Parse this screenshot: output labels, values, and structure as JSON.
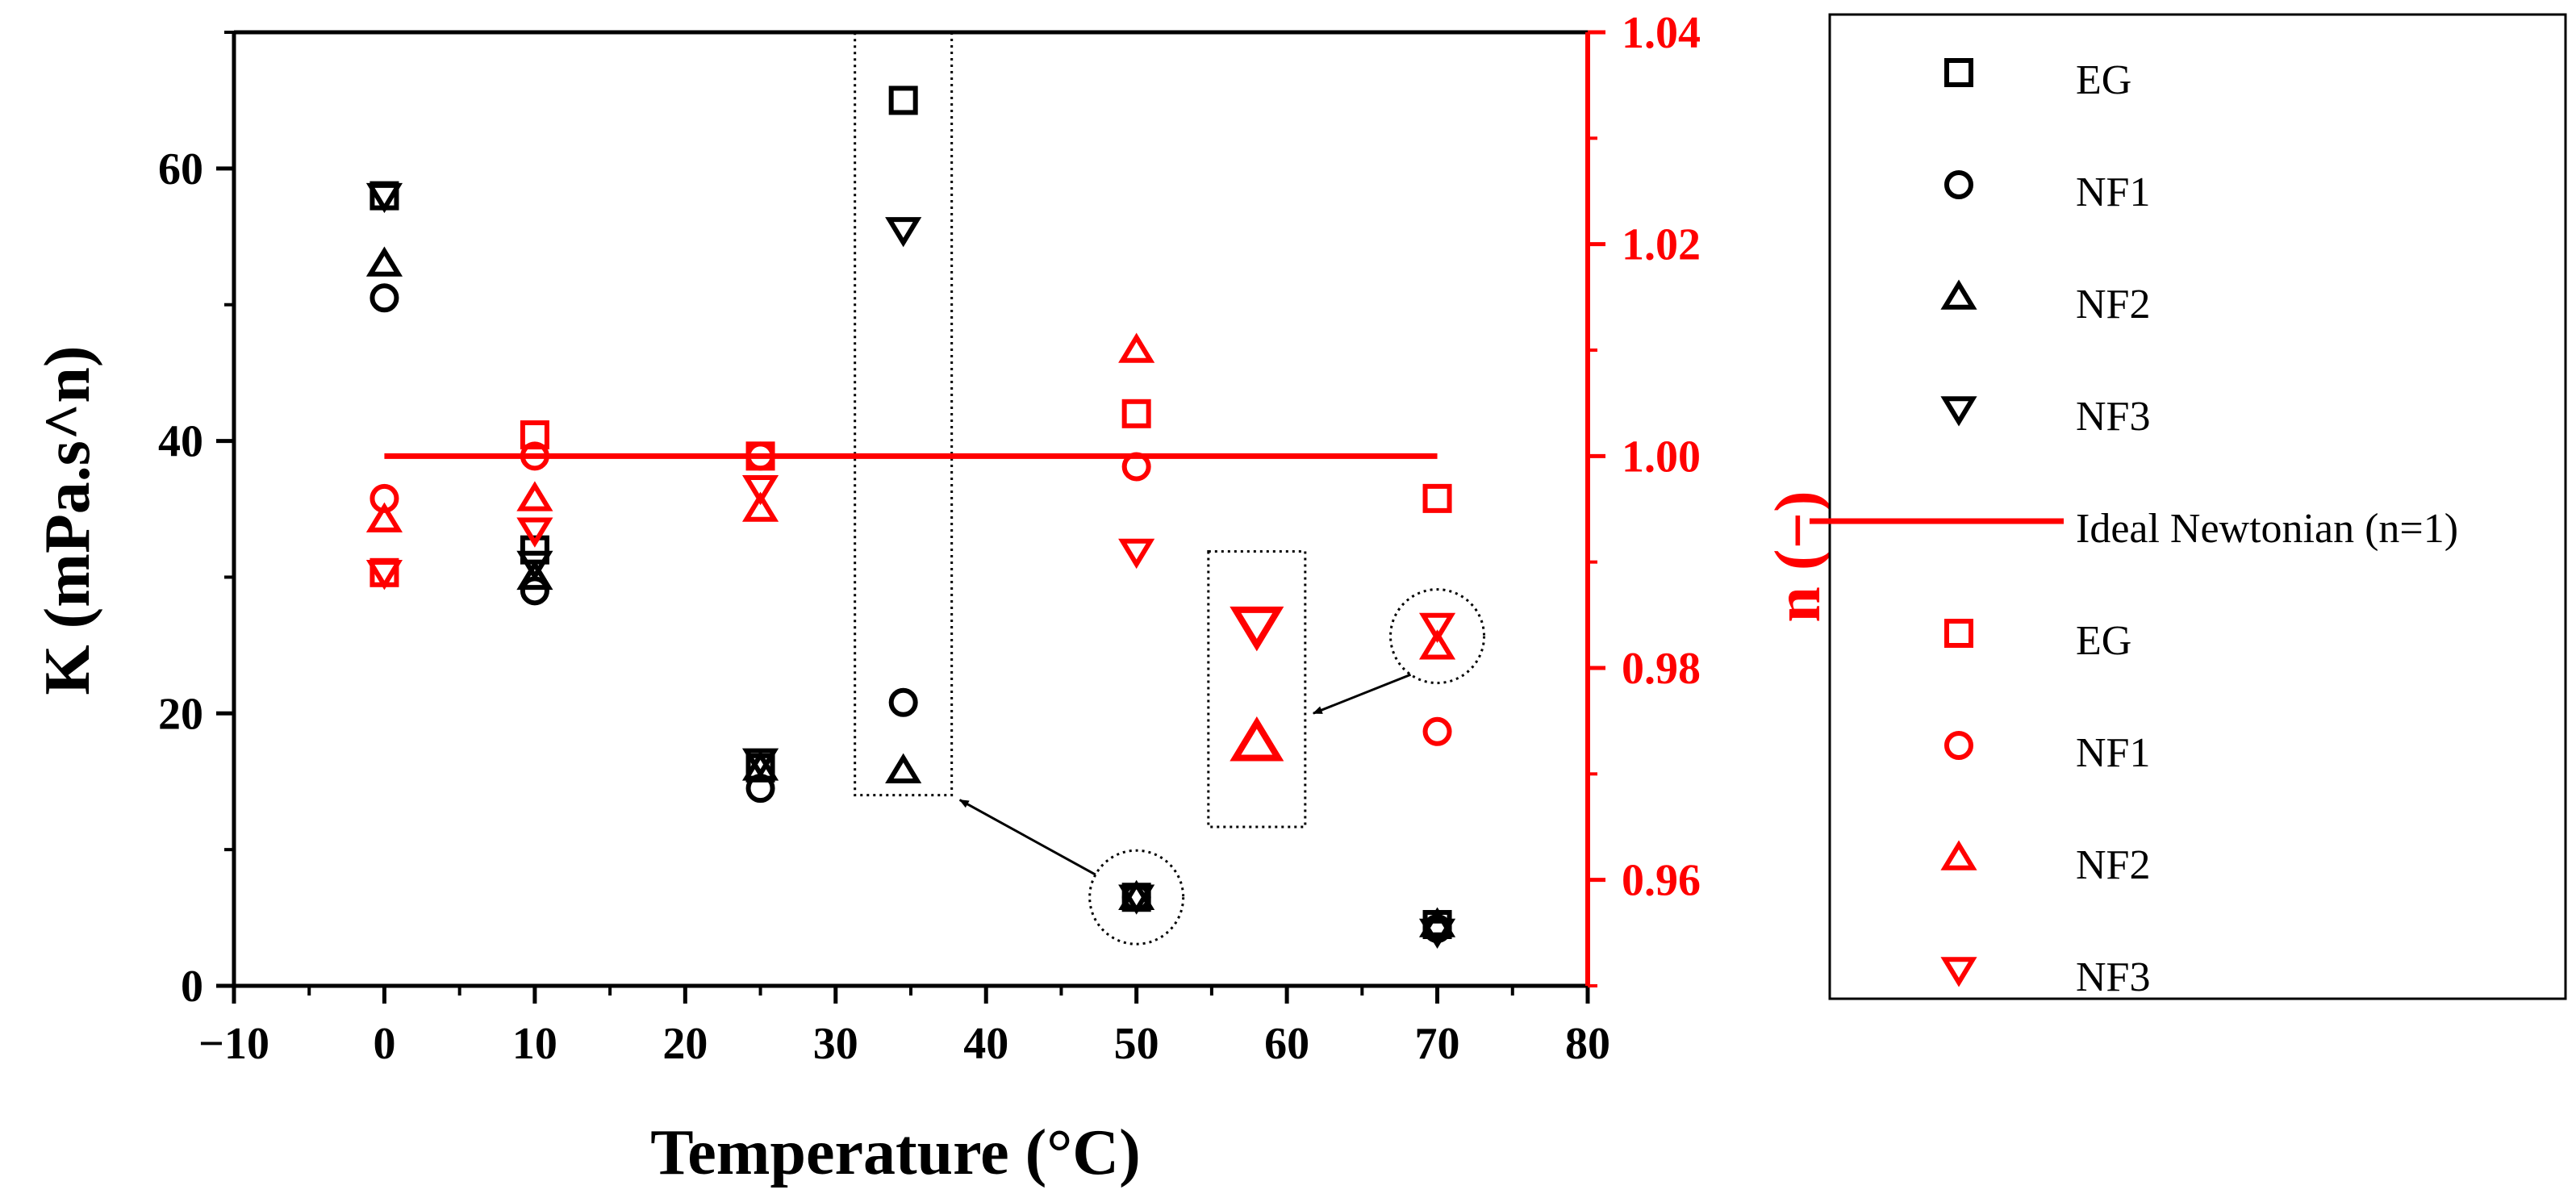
{
  "chart_data": {
    "type": "scatter",
    "xlabel": "Temperature (°C)",
    "ylabel_left": "K (mPa.s^n)",
    "ylabel_right": "n (−)",
    "xlim": [
      -10,
      80
    ],
    "ylim_left": [
      0,
      70
    ],
    "ylim_right": [
      0.95,
      1.04
    ],
    "x_ticks": [
      -10,
      0,
      10,
      20,
      30,
      40,
      50,
      60,
      70,
      80
    ],
    "x_tick_labels": [
      "−10",
      "0",
      "10",
      "20",
      "30",
      "40",
      "50",
      "60",
      "70",
      "80"
    ],
    "y_left_ticks": [
      0,
      20,
      40,
      60
    ],
    "y_left_tick_labels": [
      "0",
      "20",
      "40",
      "60"
    ],
    "y_right_ticks": [
      0.96,
      0.98,
      1.0,
      1.02,
      1.04
    ],
    "y_right_tick_labels": [
      "0.96",
      "0.98",
      "1.00",
      "1.02",
      "1.04"
    ],
    "colors": {
      "k_series": "#000000",
      "n_series": "#ff0000",
      "right_axis": "#ff0000"
    },
    "series": [
      {
        "name": "EG",
        "axis": "left",
        "marker": "square",
        "color": "#000000",
        "points": [
          [
            0,
            58
          ],
          [
            10,
            32
          ],
          [
            25,
            16
          ],
          [
            50,
            6.5
          ],
          [
            70,
            4.5
          ],
          [
            34.5,
            65
          ]
        ]
      },
      {
        "name": "NF1",
        "axis": "left",
        "marker": "circle",
        "color": "#000000",
        "points": [
          [
            0,
            50.5
          ],
          [
            10,
            29
          ],
          [
            25,
            14.5
          ],
          [
            50,
            6.5
          ],
          [
            70,
            4.2
          ],
          [
            34.5,
            20.8
          ]
        ]
      },
      {
        "name": "NF2",
        "axis": "left",
        "marker": "triangle-up",
        "color": "#000000",
        "points": [
          [
            0,
            53
          ],
          [
            10,
            30
          ],
          [
            25,
            16
          ],
          [
            50,
            6.5
          ],
          [
            70,
            4.5
          ],
          [
            34.5,
            15.8
          ]
        ]
      },
      {
        "name": "NF3",
        "axis": "left",
        "marker": "triangle-down",
        "color": "#000000",
        "points": [
          [
            0,
            58
          ],
          [
            10,
            31
          ],
          [
            25,
            16.5
          ],
          [
            50,
            6.5
          ],
          [
            70,
            4
          ],
          [
            34.5,
            55.5
          ]
        ]
      },
      {
        "name": "Ideal Newtonian (n=1)",
        "axis": "right",
        "type": "line",
        "color": "#ff0000",
        "points": [
          [
            0,
            1.0
          ],
          [
            70,
            1.0
          ]
        ]
      },
      {
        "name": "EG",
        "axis": "right",
        "marker": "square",
        "color": "#ff0000",
        "points": [
          [
            0,
            0.989
          ],
          [
            10,
            1.002
          ],
          [
            25,
            1.0
          ],
          [
            50,
            1.004
          ],
          [
            70,
            0.996
          ]
        ]
      },
      {
        "name": "NF1",
        "axis": "right",
        "marker": "circle",
        "color": "#ff0000",
        "points": [
          [
            0,
            0.996
          ],
          [
            10,
            1.0
          ],
          [
            25,
            1.0
          ],
          [
            50,
            0.999
          ],
          [
            70,
            0.974
          ]
        ]
      },
      {
        "name": "NF2",
        "axis": "right",
        "marker": "triangle-up",
        "color": "#ff0000",
        "points": [
          [
            0,
            0.994
          ],
          [
            10,
            0.996
          ],
          [
            25,
            0.995
          ],
          [
            50,
            1.01
          ],
          [
            70,
            0.982
          ],
          [
            58,
            0.973
          ]
        ]
      },
      {
        "name": "NF3",
        "axis": "right",
        "marker": "triangle-down",
        "color": "#ff0000",
        "points": [
          [
            0,
            0.989
          ],
          [
            10,
            0.993
          ],
          [
            25,
            0.997
          ],
          [
            50,
            0.991
          ],
          [
            70,
            0.984
          ],
          [
            58,
            0.984
          ]
        ]
      }
    ],
    "legend": {
      "position": "right",
      "entries": [
        {
          "label": "EG",
          "marker": "square",
          "color": "#000000"
        },
        {
          "label": "NF1",
          "marker": "circle",
          "color": "#000000"
        },
        {
          "label": "NF2",
          "marker": "triangle-up",
          "color": "#000000"
        },
        {
          "label": "NF3",
          "marker": "triangle-down",
          "color": "#000000"
        },
        {
          "label": "Ideal Newtonian (n=1)",
          "marker": "line",
          "color": "#ff0000"
        },
        {
          "label": "EG",
          "marker": "square",
          "color": "#ff0000"
        },
        {
          "label": "NF1",
          "marker": "circle",
          "color": "#ff0000"
        },
        {
          "label": "NF2",
          "marker": "triangle-up",
          "color": "#ff0000"
        },
        {
          "label": "NF3",
          "marker": "triangle-down",
          "color": "#ff0000"
        }
      ]
    },
    "annotations": [
      {
        "kind": "zoom-inset",
        "axis": "left",
        "from_region_center": [
          50,
          6.5
        ],
        "inset_x": 34.5,
        "inset_y_range": [
          14,
          70
        ]
      },
      {
        "kind": "zoom-inset",
        "axis": "right",
        "from_region_center": [
          70,
          0.983
        ],
        "inset_x": 58,
        "inset_y_range": [
          0.965,
          0.991
        ]
      }
    ]
  }
}
